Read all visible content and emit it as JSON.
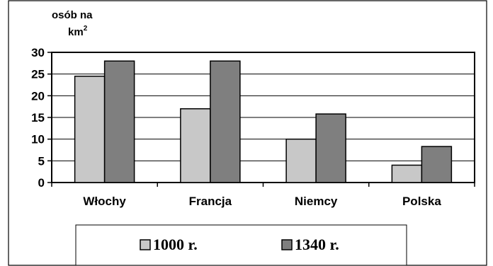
{
  "chart_data": {
    "type": "bar",
    "unit_label": {
      "line1": "osób na",
      "line2_base": "km",
      "line2_sup": "2"
    },
    "categories": [
      "Włochy",
      "Francja",
      "Niemcy",
      "Polska"
    ],
    "series": [
      {
        "name": "1000 r.",
        "values": [
          24.5,
          17,
          10,
          4
        ],
        "color": "#c8c8c8"
      },
      {
        "name": "1340 r.",
        "values": [
          28,
          28,
          15.8,
          8.3
        ],
        "color": "#7f7f7f"
      }
    ],
    "y_ticks": [
      "0",
      "5",
      "10",
      "15",
      "20",
      "25",
      "30"
    ],
    "ylim": [
      0,
      30
    ],
    "grid": true,
    "legend_position": "bottom"
  }
}
